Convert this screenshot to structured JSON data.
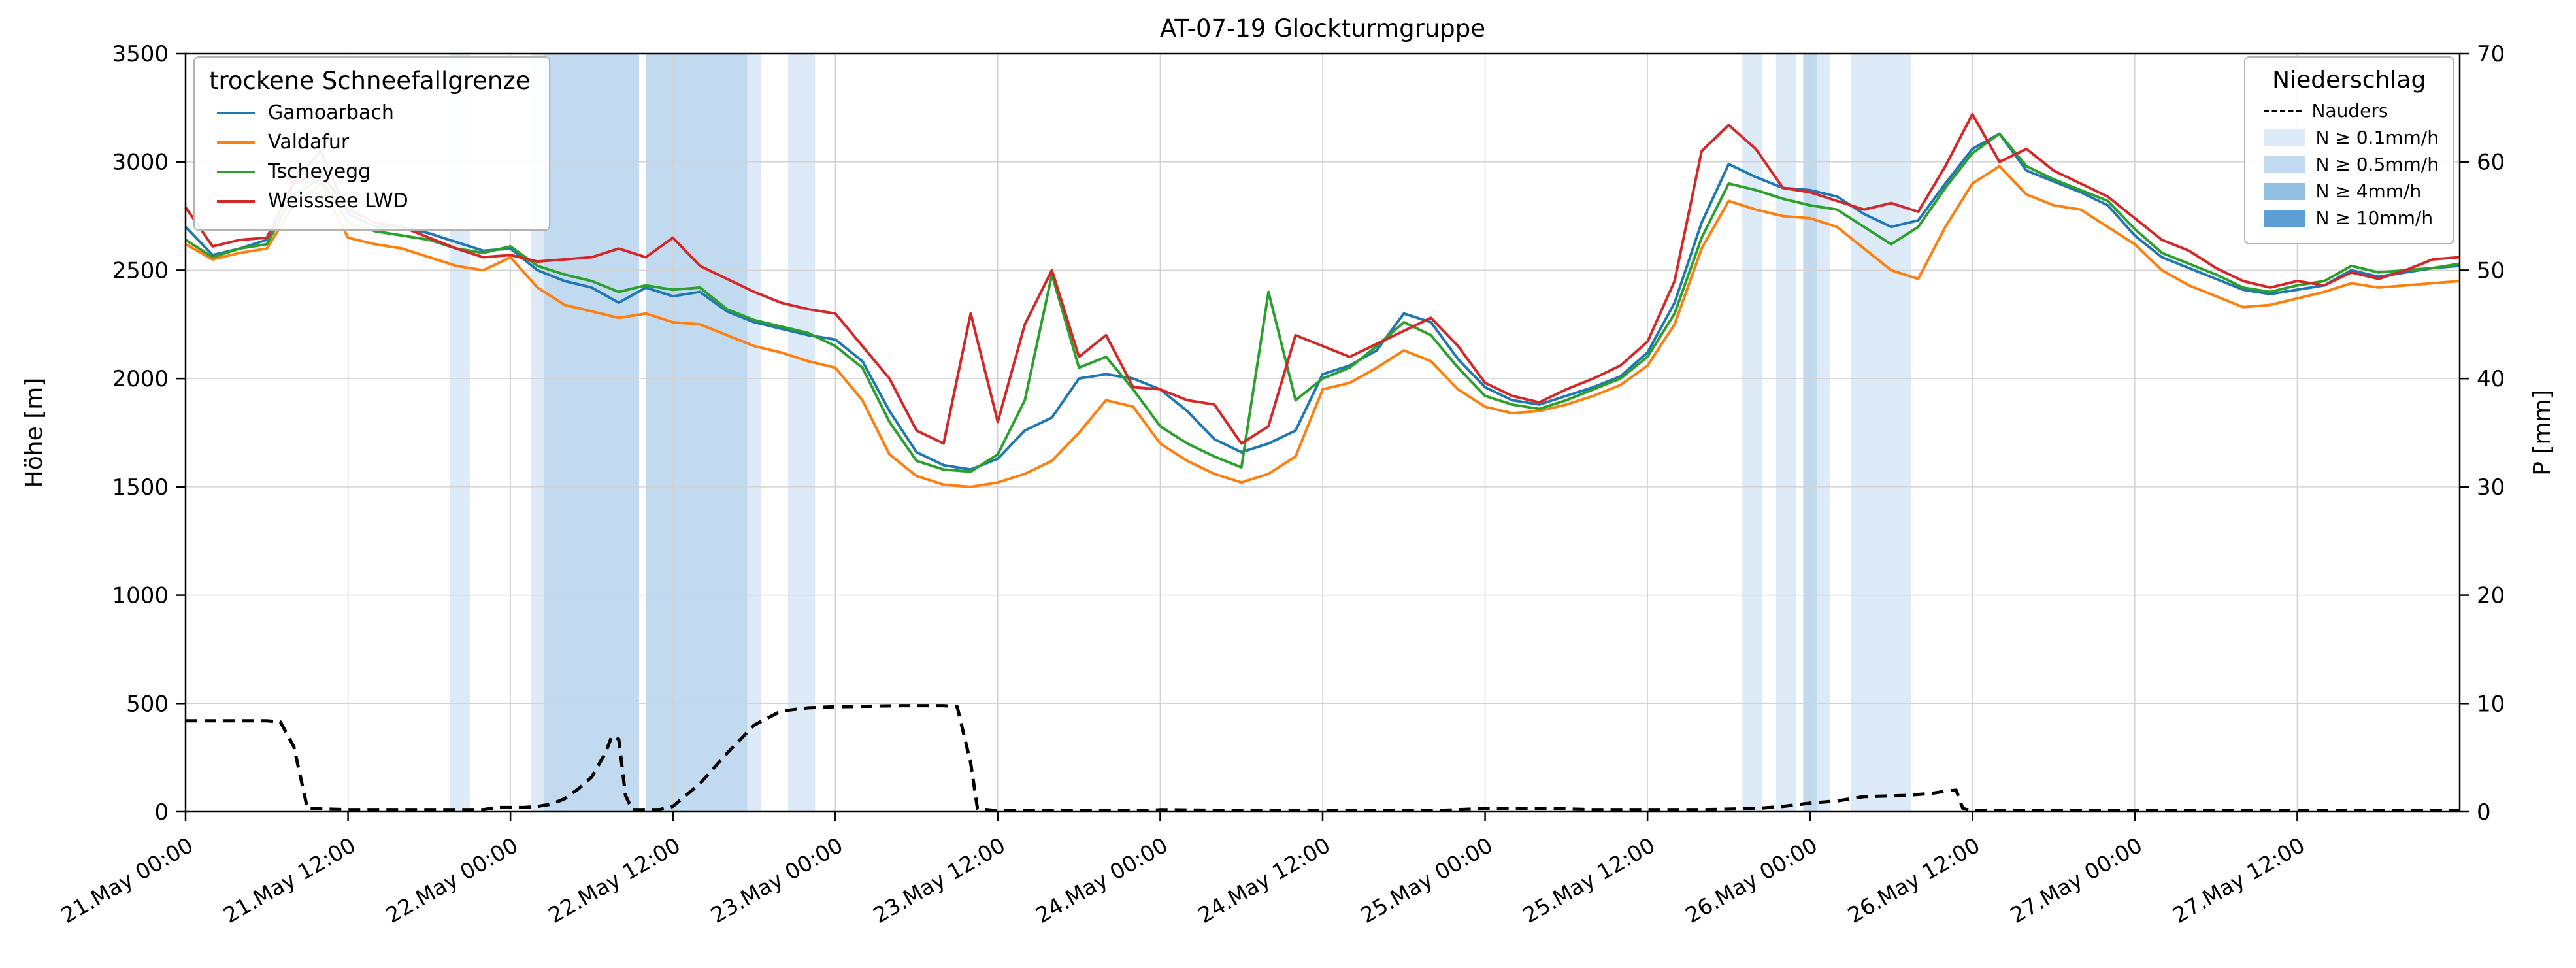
{
  "title": "AT-07-19 Glockturmgruppe",
  "axes": {
    "y_left": {
      "label": "Höhe [m]",
      "min": 0,
      "max": 3500,
      "ticks": [
        0,
        500,
        1000,
        1500,
        2000,
        2500,
        3000,
        3500
      ]
    },
    "y_right": {
      "label": "P [mm]",
      "min": 0,
      "max": 70,
      "ticks": [
        0,
        10,
        20,
        30,
        40,
        50,
        60,
        70
      ]
    },
    "x": {
      "range_hours": [
        0,
        168
      ],
      "ticks": [
        {
          "hour": 0,
          "label": "21.May 00:00"
        },
        {
          "hour": 12,
          "label": "21.May 12:00"
        },
        {
          "hour": 24,
          "label": "22.May 00:00"
        },
        {
          "hour": 36,
          "label": "22.May 12:00"
        },
        {
          "hour": 48,
          "label": "23.May 00:00"
        },
        {
          "hour": 60,
          "label": "23.May 12:00"
        },
        {
          "hour": 72,
          "label": "24.May 00:00"
        },
        {
          "hour": 84,
          "label": "24.May 12:00"
        },
        {
          "hour": 96,
          "label": "25.May 00:00"
        },
        {
          "hour": 108,
          "label": "25.May 12:00"
        },
        {
          "hour": 120,
          "label": "26.May 00:00"
        },
        {
          "hour": 132,
          "label": "26.May 12:00"
        },
        {
          "hour": 144,
          "label": "27.May 00:00"
        },
        {
          "hour": 156,
          "label": "27.May 12:00"
        }
      ]
    }
  },
  "legend_snowline": {
    "title": "trockene Schneefallgrenze"
  },
  "legend_precip": {
    "title": "Niederschlag",
    "line_item": {
      "label": "Nauders",
      "color": "#000000"
    },
    "band_items": [
      {
        "label": "N ≥ 0.1mm/h",
        "color": "#ddeaf7"
      },
      {
        "label": "N ≥ 0.5mm/h",
        "color": "#c2daf0"
      },
      {
        "label": "N ≥ 4mm/h",
        "color": "#93bfe4"
      },
      {
        "label": "N ≥ 10mm/h",
        "color": "#5c9fd4"
      }
    ]
  },
  "chart_data": {
    "type": "line",
    "title": "AT-07-19 Glockturmgruppe",
    "x_unit": "hours since 21 May 00:00",
    "x_step": 2,
    "x_range": [
      0,
      168
    ],
    "ylim_left": [
      0,
      3500
    ],
    "ylim_right": [
      0,
      70
    ],
    "grid": true,
    "series": [
      {
        "name": "Gamoarbach",
        "color": "#1f77b4",
        "axis": "left",
        "values": [
          2700,
          2570,
          2600,
          2640,
          2910,
          3050,
          2760,
          2700,
          2700,
          2670,
          2630,
          2590,
          2600,
          2500,
          2450,
          2420,
          2350,
          2420,
          2380,
          2400,
          2310,
          2260,
          2230,
          2200,
          2180,
          2080,
          1850,
          1660,
          1600,
          1580,
          1630,
          1760,
          1820,
          2000,
          2020,
          2000,
          1950,
          1850,
          1720,
          1660,
          1700,
          1760,
          2020,
          2060,
          2130,
          2300,
          2260,
          2090,
          1960,
          1900,
          1880,
          1920,
          1960,
          2010,
          2120,
          2350,
          2720,
          2990,
          2930,
          2880,
          2870,
          2840,
          2760,
          2700,
          2730,
          2900,
          3060,
          3130,
          2960,
          2910,
          2860,
          2800,
          2660,
          2560,
          2510,
          2460,
          2410,
          2390,
          2410,
          2430,
          2500,
          2470,
          2490,
          2510,
          2520
        ]
      },
      {
        "name": "Valdafur",
        "color": "#ff7f0e",
        "axis": "left",
        "values": [
          2620,
          2550,
          2580,
          2600,
          2800,
          2900,
          2650,
          2620,
          2600,
          2560,
          2520,
          2500,
          2560,
          2420,
          2340,
          2310,
          2280,
          2300,
          2260,
          2250,
          2200,
          2150,
          2120,
          2080,
          2050,
          1900,
          1650,
          1550,
          1510,
          1500,
          1520,
          1560,
          1620,
          1750,
          1900,
          1870,
          1700,
          1620,
          1560,
          1520,
          1560,
          1640,
          1950,
          1980,
          2050,
          2130,
          2080,
          1950,
          1870,
          1840,
          1850,
          1880,
          1920,
          1970,
          2060,
          2250,
          2600,
          2820,
          2780,
          2750,
          2740,
          2700,
          2600,
          2500,
          2460,
          2700,
          2900,
          2980,
          2850,
          2800,
          2780,
          2700,
          2620,
          2500,
          2430,
          2380,
          2330,
          2340,
          2370,
          2400,
          2440,
          2420,
          2430,
          2440,
          2450
        ]
      },
      {
        "name": "Tscheyegg",
        "color": "#2ca02c",
        "axis": "left",
        "values": [
          2640,
          2560,
          2600,
          2620,
          2850,
          2920,
          2720,
          2680,
          2660,
          2640,
          2600,
          2580,
          2610,
          2520,
          2480,
          2450,
          2400,
          2430,
          2410,
          2420,
          2320,
          2270,
          2240,
          2210,
          2150,
          2050,
          1800,
          1620,
          1580,
          1570,
          1650,
          1900,
          2480,
          2050,
          2100,
          1950,
          1780,
          1700,
          1640,
          1590,
          2400,
          1900,
          2000,
          2050,
          2150,
          2260,
          2200,
          2050,
          1920,
          1880,
          1860,
          1900,
          1950,
          2000,
          2100,
          2300,
          2650,
          2900,
          2870,
          2830,
          2800,
          2780,
          2700,
          2620,
          2700,
          2880,
          3040,
          3130,
          2980,
          2920,
          2870,
          2820,
          2690,
          2580,
          2530,
          2480,
          2420,
          2400,
          2430,
          2450,
          2520,
          2490,
          2500,
          2510,
          2530
        ]
      },
      {
        "name": "Weisssee LWD",
        "color": "#d62728",
        "axis": "left",
        "values": [
          2790,
          2610,
          2640,
          2650,
          2900,
          2950,
          2780,
          2720,
          2700,
          2650,
          2600,
          2560,
          2570,
          2540,
          2550,
          2560,
          2600,
          2560,
          2650,
          2520,
          2460,
          2400,
          2350,
          2320,
          2300,
          2150,
          2000,
          1760,
          1700,
          2300,
          1800,
          2250,
          2500,
          2100,
          2200,
          1960,
          1950,
          1900,
          1880,
          1700,
          1780,
          2200,
          2150,
          2100,
          2160,
          2220,
          2280,
          2150,
          1980,
          1920,
          1890,
          1950,
          2000,
          2060,
          2170,
          2450,
          3050,
          3170,
          3060,
          2880,
          2860,
          2820,
          2780,
          2810,
          2770,
          2980,
          3220,
          3000,
          3060,
          2960,
          2900,
          2840,
          2740,
          2640,
          2590,
          2510,
          2450,
          2420,
          2450,
          2430,
          2490,
          2460,
          2500,
          2550,
          2560
        ]
      }
    ],
    "precip_line": {
      "name": "Nauders",
      "color": "#000000",
      "axis": "right",
      "style": "dashed",
      "points": [
        [
          0,
          8.4
        ],
        [
          6,
          8.4
        ],
        [
          7,
          8.3
        ],
        [
          8,
          6.0
        ],
        [
          9,
          0.3
        ],
        [
          12,
          0.2
        ],
        [
          22,
          0.2
        ],
        [
          23,
          0.4
        ],
        [
          25,
          0.4
        ],
        [
          26,
          0.5
        ],
        [
          27,
          0.7
        ],
        [
          28,
          1.2
        ],
        [
          29,
          2.1
        ],
        [
          30,
          3.2
        ],
        [
          31,
          5.4
        ],
        [
          31.5,
          7.0
        ],
        [
          32,
          6.7
        ],
        [
          32.5,
          1.5
        ],
        [
          33,
          0.2
        ],
        [
          35,
          0.2
        ],
        [
          36,
          0.5
        ],
        [
          38,
          2.6
        ],
        [
          40,
          5.4
        ],
        [
          42,
          8.0
        ],
        [
          44,
          9.3
        ],
        [
          46,
          9.6
        ],
        [
          48,
          9.7
        ],
        [
          53,
          9.8
        ],
        [
          56,
          9.8
        ],
        [
          57,
          9.7
        ],
        [
          58,
          4.5
        ],
        [
          58.5,
          0.3
        ],
        [
          60,
          0.1
        ],
        [
          71,
          0.1
        ],
        [
          72,
          0.2
        ],
        [
          80,
          0.1
        ],
        [
          92,
          0.1
        ],
        [
          94,
          0.2
        ],
        [
          96,
          0.3
        ],
        [
          101,
          0.3
        ],
        [
          104,
          0.2
        ],
        [
          112,
          0.2
        ],
        [
          116,
          0.3
        ],
        [
          118,
          0.5
        ],
        [
          120,
          0.8
        ],
        [
          122,
          1.0
        ],
        [
          124,
          1.4
        ],
        [
          127,
          1.5
        ],
        [
          129,
          1.7
        ],
        [
          130,
          1.9
        ],
        [
          130.8,
          2.0
        ],
        [
          131.3,
          0.3
        ],
        [
          132,
          0.1
        ],
        [
          168,
          0.1
        ]
      ]
    },
    "precip_bands": [
      {
        "start": 19.5,
        "end": 21,
        "level": 0
      },
      {
        "start": 25.5,
        "end": 26.5,
        "level": 0
      },
      {
        "start": 26.5,
        "end": 33.5,
        "level": 1
      },
      {
        "start": 34,
        "end": 41.5,
        "level": 1
      },
      {
        "start": 41.5,
        "end": 42.5,
        "level": 0
      },
      {
        "start": 44.5,
        "end": 46.5,
        "level": 0
      },
      {
        "start": 115,
        "end": 116.5,
        "level": 0
      },
      {
        "start": 117.5,
        "end": 119,
        "level": 0
      },
      {
        "start": 119.5,
        "end": 120.5,
        "level": 1
      },
      {
        "start": 120.5,
        "end": 121.5,
        "level": 0
      },
      {
        "start": 123,
        "end": 127.5,
        "level": 0
      }
    ]
  }
}
